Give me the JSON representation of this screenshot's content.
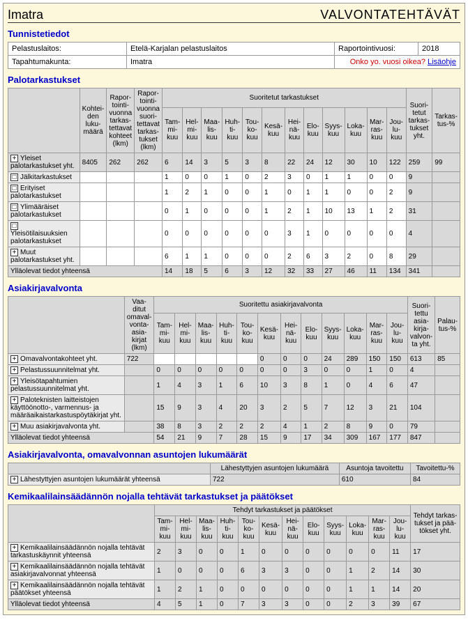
{
  "header": {
    "left": "Imatra",
    "right": "VALVONTATEHTÄVÄT"
  },
  "id": {
    "title": "Tunnistetiedot",
    "rescue_label": "Pelastuslaitos:",
    "rescue_value": "Etelä-Karjalan pelastuslaitos",
    "year_label": "Raportointivuosi:",
    "year_value": "2018",
    "event_label": "Tapahtumakunta:",
    "event_value": "Imatra",
    "warn": "Onko yo. vuosi oikea?",
    "more": "Lisäohje"
  },
  "palot": {
    "title": "Palotarkastukset",
    "cols": {
      "kohteiden": "Kohtei-den luku-määrä",
      "rapor1": "Rapor-tointi-vuonna tarkas-tettavat kohteet (lkm)",
      "rapor2": "Rapor-tointi-vuonna suori-tettavat tarkas-tukset (lkm)",
      "suoritetut_head": "Suoritetut tarkastukset",
      "months": [
        "Tam-mi-kuu",
        "Hel-mi-kuu",
        "Maa-lis-kuu",
        "Huh-ti-kuu",
        "Tou-ko-kuu",
        "Kesä-kuu",
        "Hei-nä-kuu",
        "Elo-kuu",
        "Syys-kuu",
        "Loka-kuu",
        "Mar-ras-kuu",
        "Jou-lu-kuu"
      ],
      "suor_yht": "Suori-tetut tarkas-tukset yht.",
      "tark": "Tarkas-tus-%"
    },
    "rows": [
      {
        "exp": "+",
        "label": "Yleiset palotarkastukset yht.",
        "koh": "8405",
        "r1": "262",
        "r2": "262",
        "m": [
          "6",
          "14",
          "3",
          "5",
          "3",
          "8",
          "22",
          "24",
          "12",
          "30",
          "10",
          "122"
        ],
        "y": "259",
        "p": "99"
      },
      {
        "exp": "□",
        "label": "Jälkitarkastukset",
        "koh": "",
        "r1": "",
        "r2": "",
        "m": [
          "1",
          "0",
          "0",
          "1",
          "0",
          "2",
          "3",
          "0",
          "1",
          "1",
          "0",
          "0"
        ],
        "y": "9",
        "p": ""
      },
      {
        "exp": "□",
        "label": "Erityiset palotarkastukset",
        "koh": "",
        "r1": "",
        "r2": "",
        "m": [
          "1",
          "2",
          "1",
          "0",
          "0",
          "1",
          "0",
          "1",
          "1",
          "0",
          "0",
          "2"
        ],
        "y": "9",
        "p": ""
      },
      {
        "exp": "□",
        "label": "Ylimääräiset palotarkastukset",
        "koh": "",
        "r1": "",
        "r2": "",
        "m": [
          "0",
          "1",
          "0",
          "0",
          "0",
          "1",
          "2",
          "1",
          "10",
          "13",
          "1",
          "2"
        ],
        "y": "31",
        "p": ""
      },
      {
        "exp": "□",
        "label": "Yleisötilaisuuksien palotarkastukset",
        "koh": "",
        "r1": "",
        "r2": "",
        "m": [
          "0",
          "0",
          "0",
          "0",
          "0",
          "0",
          "3",
          "1",
          "0",
          "0",
          "0",
          "0"
        ],
        "y": "4",
        "p": ""
      },
      {
        "exp": "+",
        "label": "Muut palotarkastukset yht.",
        "koh": "",
        "r1": "",
        "r2": "",
        "m": [
          "6",
          "1",
          "1",
          "0",
          "0",
          "0",
          "2",
          "6",
          "3",
          "2",
          "0",
          "8"
        ],
        "y": "29",
        "p": ""
      }
    ],
    "sum": {
      "label": "Ylläolevat tiedot yhteensä",
      "m": [
        "14",
        "18",
        "5",
        "6",
        "3",
        "12",
        "32",
        "33",
        "27",
        "46",
        "11",
        "134"
      ],
      "y": "341"
    }
  },
  "asiak": {
    "title": "Asiakirjavalvonta",
    "cols": {
      "vaad": "Vaa-ditut omaval-vonta-asia-kirjat (lkm)",
      "suor_head": "Suoritettu asiakirjavalvonta",
      "months": [
        "Tam-mi-kuu",
        "Hel-mi-kuu",
        "Maa-lis-kuu",
        "Huh-ti-kuu",
        "Tou-ko-kuu",
        "Kesä-kuu",
        "Hei-nä-kuu",
        "Elo-kuu",
        "Syys-kuu",
        "Loka-kuu",
        "Mar-ras-kuu",
        "Jou-lu-kuu"
      ],
      "suor_yht": "Suori-tettu asia-kirja-valvon-ta yht.",
      "pal": "Palau-tus-%"
    },
    "rows": [
      {
        "exp": "+",
        "label": "Omavalvontakohteet yht.",
        "v": "722",
        "m": [
          "",
          "",
          "",
          "",
          "",
          "0",
          "0",
          "0",
          "24",
          "289",
          "150",
          "150"
        ],
        "y": "613",
        "p": "85"
      },
      {
        "exp": "+",
        "label": "Pelastussuunnitelmat yht.",
        "v": "",
        "m": [
          "0",
          "0",
          "0",
          "0",
          "0",
          "0",
          "0",
          "3",
          "0",
          "0",
          "1",
          "0"
        ],
        "y": "4",
        "p": ""
      },
      {
        "exp": "+",
        "label": "Yleisötapahtumien pelastussuunnitelmat yht.",
        "v": "",
        "m": [
          "1",
          "4",
          "3",
          "1",
          "6",
          "10",
          "3",
          "8",
          "1",
          "0",
          "4",
          "6"
        ],
        "y": "47",
        "p": ""
      },
      {
        "exp": "+",
        "label": "Paloteknisten laitteistojen käyttöönotto-, varmennus- ja määräaikaistarkastuspöytäkirjat yht.",
        "v": "",
        "m": [
          "15",
          "9",
          "3",
          "4",
          "20",
          "3",
          "2",
          "5",
          "7",
          "12",
          "3",
          "21"
        ],
        "y": "104",
        "p": ""
      },
      {
        "exp": "+",
        "label": "Muu asiakirjavalvonta yht.",
        "v": "",
        "m": [
          "38",
          "8",
          "3",
          "2",
          "2",
          "2",
          "4",
          "1",
          "2",
          "8",
          "9",
          "0"
        ],
        "y": "79",
        "p": ""
      }
    ],
    "sum": {
      "label": "Ylläolevat tiedot yhteensä",
      "m": [
        "54",
        "21",
        "9",
        "7",
        "28",
        "15",
        "9",
        "17",
        "34",
        "309",
        "167",
        "177"
      ],
      "y": "847"
    }
  },
  "oma": {
    "title": "Asiakirjavalvonta, omavalvonnan asuntojen lukumäärät",
    "cols": [
      "Lähestyttyjen asuntojen lukumäärä",
      "Asuntoja tavoitettu",
      "Tavoitettu-%"
    ],
    "row": {
      "exp": "+",
      "label": "Lähestyttyjen asuntojen lukumäärät yhteensä",
      "a": "722",
      "b": "610",
      "c": "84"
    }
  },
  "kemi": {
    "title": "Kemikaalilainsäädännön nojalla tehtävät tarkastukset ja päätökset",
    "cols": {
      "head": "Tehdyt tarkastukset ja päätökset",
      "months": [
        "Tam-mi-kuu",
        "Hel-mi-kuu",
        "Maa-lis-kuu",
        "Huh-ti-kuu",
        "Tou-ko-kuu",
        "Kesä-kuu",
        "Hei-nä-kuu",
        "Elo-kuu",
        "Syys-kuu",
        "Loka-kuu",
        "Mar-ras-kuu",
        "Jou-lu-kuu"
      ],
      "yht": "Tehdyt tarkas-tukset ja pää-tökset yht."
    },
    "rows": [
      {
        "exp": "+",
        "label": "Kemikaalilainsäädännön nojalla tehtävät tarkastuskäynnit yhteensä",
        "m": [
          "2",
          "3",
          "0",
          "0",
          "1",
          "0",
          "0",
          "0",
          "0",
          "0",
          "0",
          "11"
        ],
        "y": "17"
      },
      {
        "exp": "+",
        "label": "Kemikaalilainsäädännön nojalla tehtävät asiakirjavalvonnat yhteensä",
        "m": [
          "1",
          "0",
          "0",
          "0",
          "6",
          "3",
          "3",
          "0",
          "0",
          "1",
          "2",
          "14"
        ],
        "y": "30"
      },
      {
        "exp": "+",
        "label": "Kemikaalilainsäädännön nojalla tehtävät päätökset yhteensä",
        "m": [
          "1",
          "2",
          "1",
          "0",
          "0",
          "0",
          "0",
          "0",
          "0",
          "1",
          "1",
          "14"
        ],
        "y": "20"
      }
    ],
    "sum": {
      "label": "Ylläolevat tiedot yhteensä",
      "m": [
        "4",
        "5",
        "1",
        "0",
        "7",
        "3",
        "3",
        "0",
        "0",
        "2",
        "3",
        "39"
      ],
      "y": "67"
    }
  }
}
